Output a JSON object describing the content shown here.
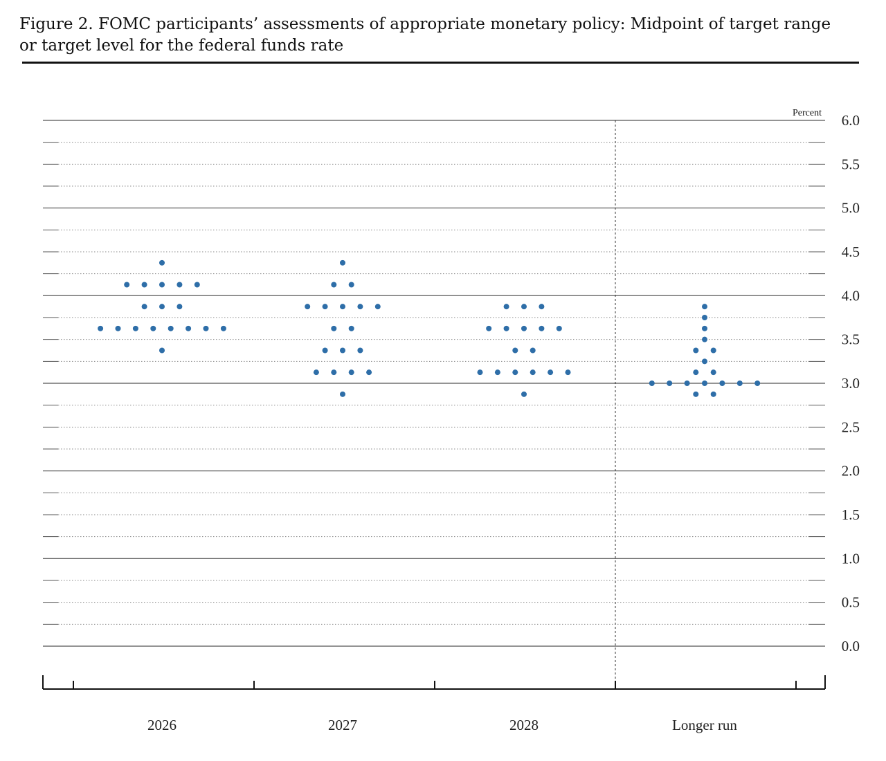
{
  "title": "Figure 2. FOMC participants’ assessments of appropriate monetary policy: Midpoint of target range or target level for the federal funds rate",
  "colors": {
    "dot": "#2e6ea8",
    "grid_major": "#555555",
    "grid_minor": "#888888",
    "axis": "#111111"
  },
  "chart_data": {
    "type": "scatter",
    "unit_label": "Percent",
    "y_axis_position": "right",
    "ylim": [
      0,
      6
    ],
    "y_ticks": [
      "0.0",
      "0.5",
      "1.0",
      "1.5",
      "2.0",
      "2.5",
      "3.0",
      "3.5",
      "4.0",
      "4.5",
      "5.0",
      "5.5",
      "6.0"
    ],
    "categories": [
      "2026",
      "2027",
      "2028",
      "Longer run"
    ],
    "divider_before_category": "Longer run",
    "groups": [
      {
        "category": "2026",
        "dots": [
          {
            "y": 4.375,
            "count": 1
          },
          {
            "y": 4.125,
            "count": 5
          },
          {
            "y": 3.875,
            "count": 3
          },
          {
            "y": 3.625,
            "count": 8
          },
          {
            "y": 3.375,
            "count": 1
          }
        ]
      },
      {
        "category": "2027",
        "dots": [
          {
            "y": 4.375,
            "count": 1
          },
          {
            "y": 4.125,
            "count": 2
          },
          {
            "y": 3.875,
            "count": 5
          },
          {
            "y": 3.625,
            "count": 2
          },
          {
            "y": 3.375,
            "count": 3
          },
          {
            "y": 3.125,
            "count": 4
          },
          {
            "y": 2.875,
            "count": 1
          }
        ]
      },
      {
        "category": "2028",
        "dots": [
          {
            "y": 3.875,
            "count": 3
          },
          {
            "y": 3.625,
            "count": 5
          },
          {
            "y": 3.375,
            "count": 2
          },
          {
            "y": 3.125,
            "count": 6
          },
          {
            "y": 2.875,
            "count": 1
          }
        ]
      },
      {
        "category": "Longer run",
        "dots": [
          {
            "y": 3.875,
            "count": 1
          },
          {
            "y": 3.75,
            "count": 1
          },
          {
            "y": 3.625,
            "count": 1
          },
          {
            "y": 3.5,
            "count": 1
          },
          {
            "y": 3.375,
            "count": 2
          },
          {
            "y": 3.25,
            "count": 1
          },
          {
            "y": 3.125,
            "count": 2
          },
          {
            "y": 3.0,
            "count": 7
          },
          {
            "y": 2.875,
            "count": 2
          }
        ]
      }
    ]
  }
}
